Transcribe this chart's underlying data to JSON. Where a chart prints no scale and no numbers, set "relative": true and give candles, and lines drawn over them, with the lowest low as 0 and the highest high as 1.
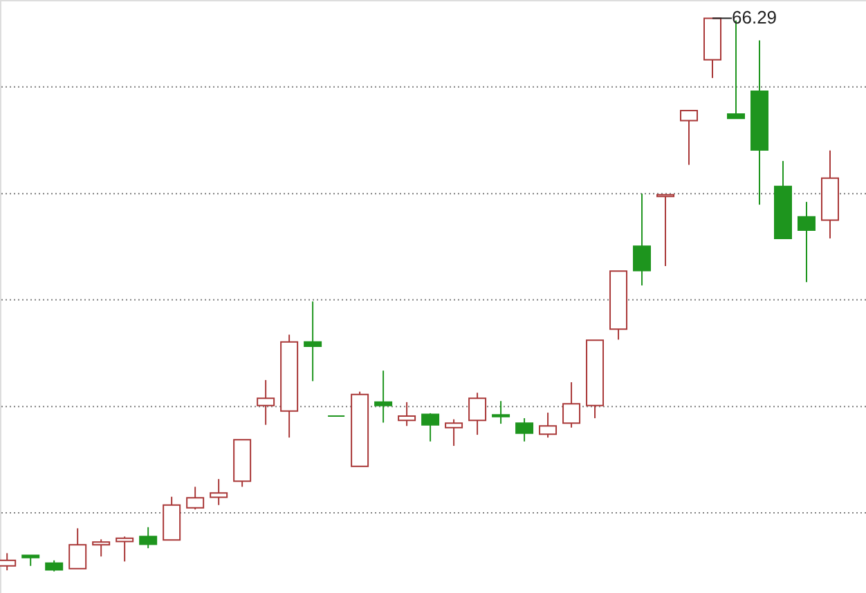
{
  "chart_data": {
    "type": "candlestick",
    "relative": true,
    "categories": [
      null,
      null,
      null,
      null,
      null,
      null,
      null,
      null,
      null,
      null,
      null,
      null,
      null,
      null,
      null,
      null,
      null,
      null,
      null,
      null,
      null,
      null,
      null,
      null,
      null,
      null,
      null,
      null,
      null,
      null,
      null,
      null,
      null,
      null,
      null,
      null
    ],
    "ohlc": [
      [
        0.01,
        0.033,
        0.002,
        0.02
      ],
      [
        0.029,
        0.029,
        0.01,
        0.025
      ],
      [
        0.015,
        0.02,
        0.0,
        0.003
      ],
      [
        0.005,
        0.078,
        0.005,
        0.048
      ],
      [
        0.048,
        0.058,
        0.027,
        0.053
      ],
      [
        0.054,
        0.063,
        0.018,
        0.06
      ],
      [
        0.063,
        0.08,
        0.042,
        0.049
      ],
      [
        0.057,
        0.135,
        0.057,
        0.12
      ],
      [
        0.115,
        0.153,
        0.112,
        0.133
      ],
      [
        0.134,
        0.167,
        0.12,
        0.142
      ],
      [
        0.163,
        0.238,
        0.153,
        0.238
      ],
      [
        0.3,
        0.346,
        0.265,
        0.313
      ],
      [
        0.29,
        0.428,
        0.242,
        0.415
      ],
      [
        0.415,
        0.488,
        0.344,
        0.407
      ],
      [
        0.281,
        0.281,
        0.281,
        0.281
      ],
      [
        0.19,
        0.325,
        0.19,
        0.32
      ],
      [
        0.306,
        0.363,
        0.269,
        0.3
      ],
      [
        0.273,
        0.306,
        0.263,
        0.281
      ],
      [
        0.284,
        0.286,
        0.235,
        0.265
      ],
      [
        0.26,
        0.275,
        0.227,
        0.268
      ],
      [
        0.273,
        0.323,
        0.247,
        0.313
      ],
      [
        0.283,
        0.308,
        0.267,
        0.28
      ],
      [
        0.268,
        0.277,
        0.235,
        0.25
      ],
      [
        0.248,
        0.287,
        0.242,
        0.263
      ],
      [
        0.268,
        0.342,
        0.26,
        0.303
      ],
      [
        0.3,
        0.418,
        0.277,
        0.418
      ],
      [
        0.438,
        0.543,
        0.419,
        0.543
      ],
      [
        0.588,
        0.683,
        0.517,
        0.544
      ],
      [
        0.678,
        0.681,
        0.552,
        0.681
      ],
      [
        0.815,
        0.833,
        0.735,
        0.833
      ],
      [
        0.925,
        1.0,
        0.892,
        1.0
      ],
      [
        0.827,
        0.996,
        0.819,
        0.819
      ],
      [
        0.868,
        0.96,
        0.663,
        0.762
      ],
      [
        0.696,
        0.742,
        0.602,
        0.602
      ],
      [
        0.641,
        0.668,
        0.523,
        0.617
      ],
      [
        0.635,
        0.761,
        0.602,
        0.711
      ]
    ],
    "colors": [
      "#a93737",
      "#1e951e",
      "#1e951e",
      "#a93737",
      "#a93737",
      "#a93737",
      "#1e951e",
      "#a93737",
      "#a93737",
      "#a93737",
      "#a93737",
      "#a93737",
      "#a93737",
      "#1e951e",
      "#1e951e",
      "#a93737",
      "#1e951e",
      "#a93737",
      "#1e951e",
      "#a93737",
      "#a93737",
      "#1e951e",
      "#1e951e",
      "#a93737",
      "#a93737",
      "#a93737",
      "#a93737",
      "#1e951e",
      "#a93737",
      "#a93737",
      "#a93737",
      "#1e951e",
      "#1e951e",
      "#1e951e",
      "#1e951e",
      "#a93737"
    ],
    "ref_lines": [
      {
        "axis": "y",
        "value": 0.876,
        "line_style": "dotted",
        "color": "#808080"
      },
      {
        "axis": "y",
        "value": 0.683,
        "line_style": "dotted",
        "color": "#808080"
      },
      {
        "axis": "y",
        "value": 0.491,
        "line_style": "dotted",
        "color": "#808080"
      },
      {
        "axis": "y",
        "value": 0.298,
        "line_style": "dotted",
        "color": "#808080"
      },
      {
        "axis": "y",
        "value": 0.106,
        "line_style": "dotted",
        "color": "#808080"
      }
    ],
    "annotations": [
      "66.29"
    ]
  }
}
